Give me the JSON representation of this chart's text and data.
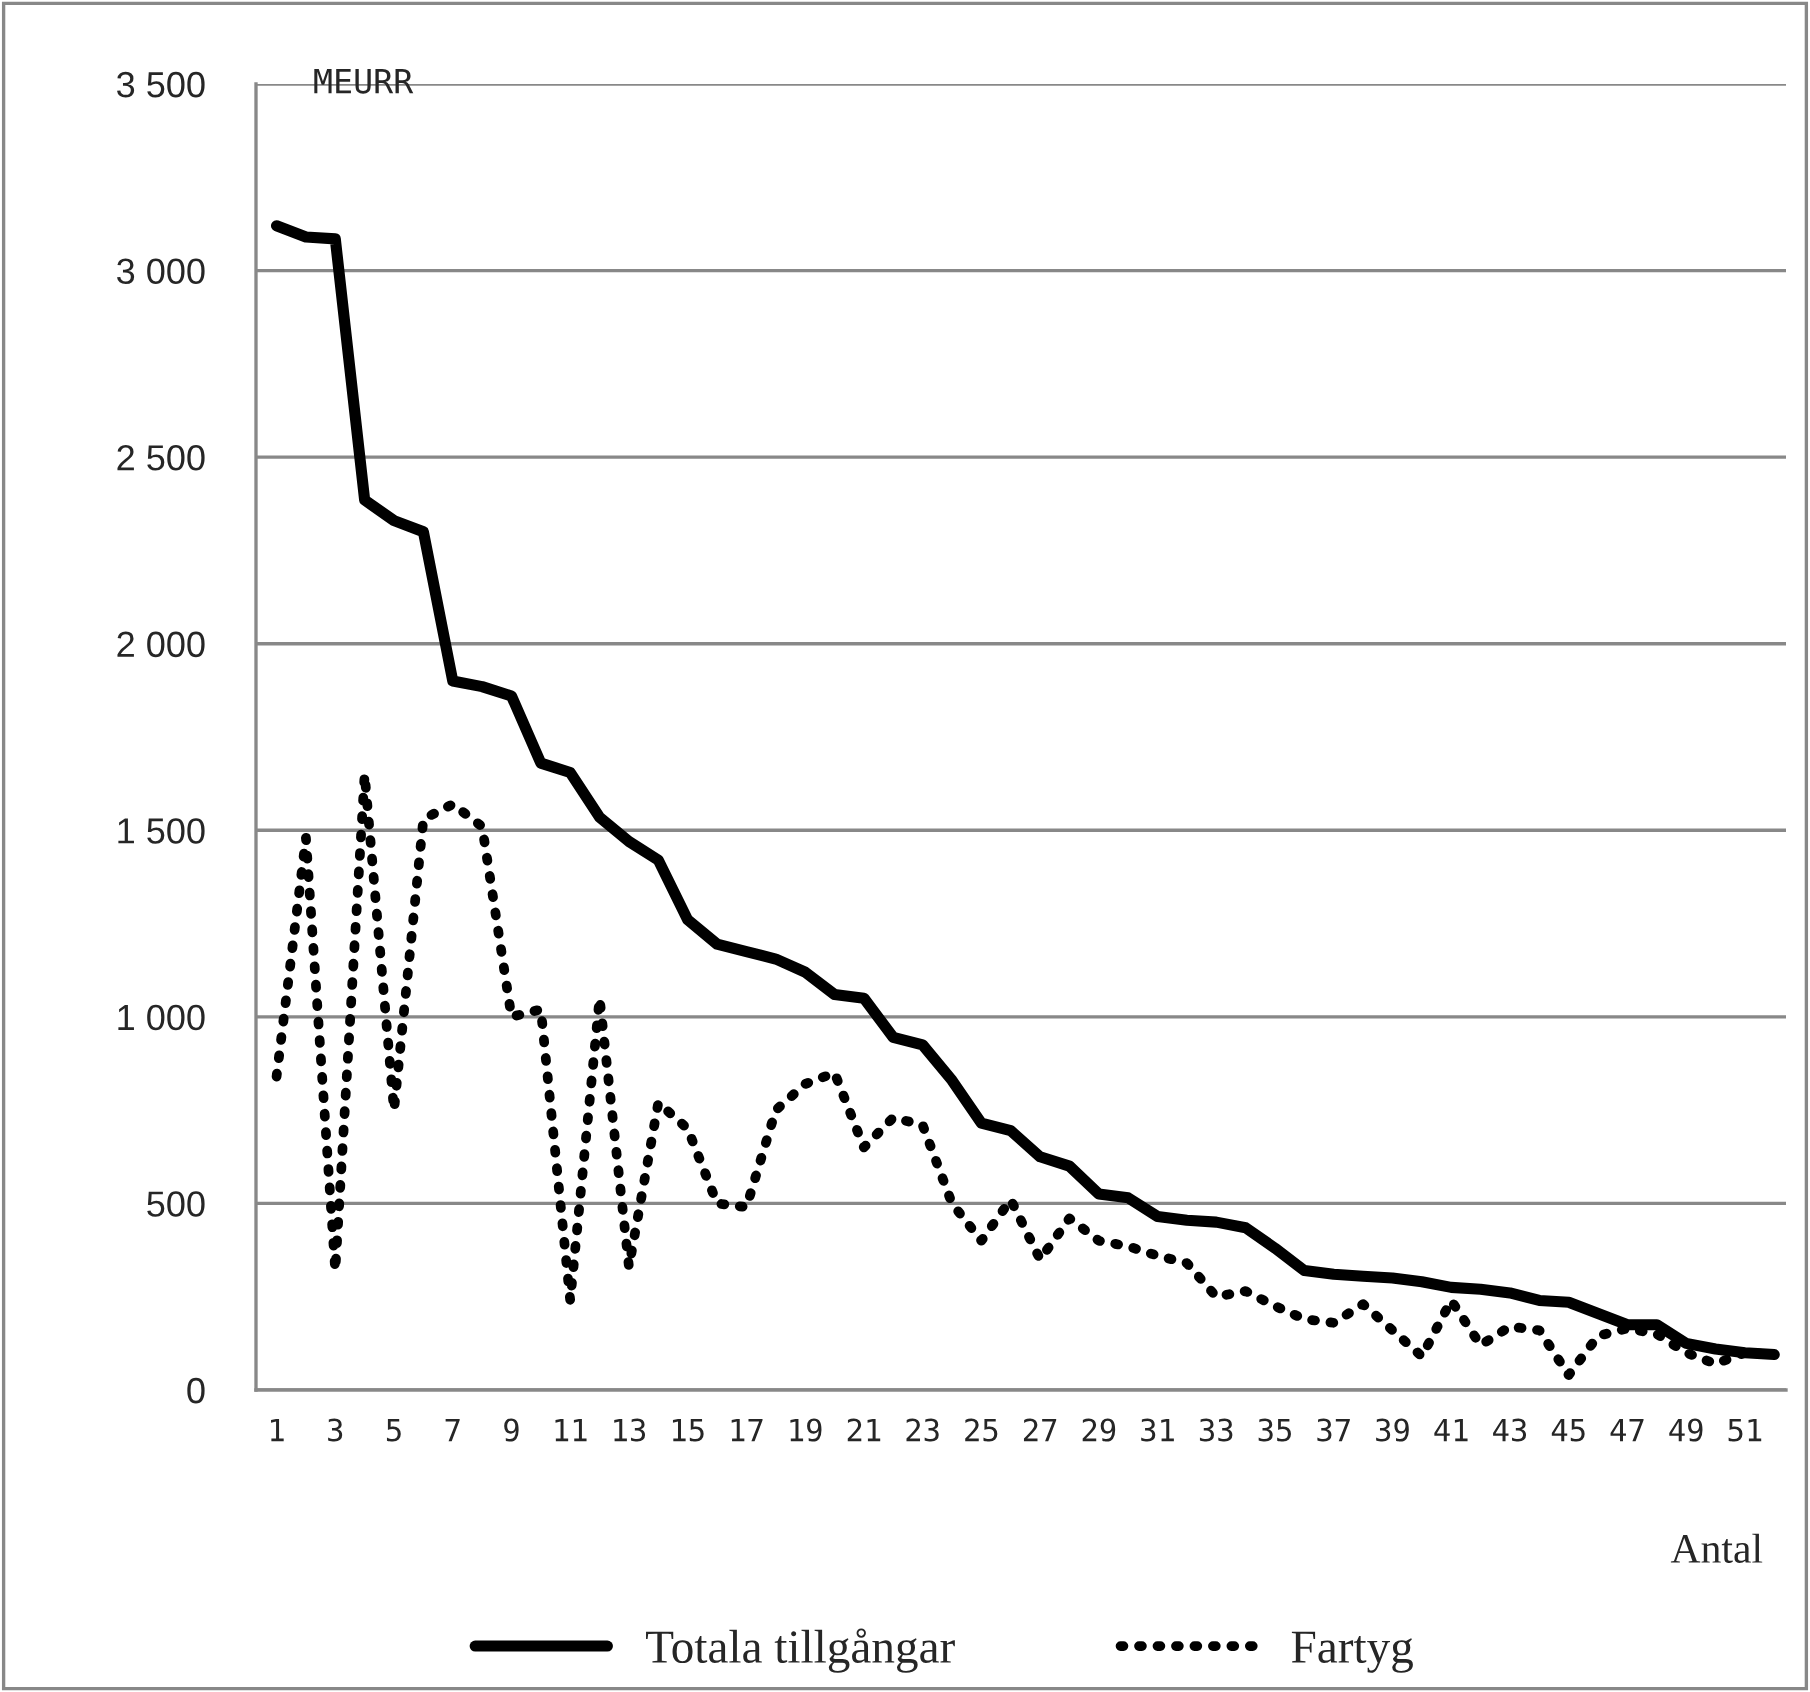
{
  "chart_data": {
    "type": "line",
    "ylabel": "MEURR",
    "xlabel": "Antal",
    "categories": [
      "1",
      null,
      "3",
      null,
      "5",
      null,
      "7",
      null,
      "9",
      null,
      "11",
      null,
      "13",
      null,
      "15",
      null,
      "17",
      null,
      "19",
      null,
      "21",
      null,
      "23",
      null,
      "25",
      null,
      "27",
      null,
      "29",
      null,
      "31",
      null,
      "33",
      null,
      "35",
      null,
      "37",
      null,
      "39",
      null,
      "41",
      null,
      "43",
      null,
      "45",
      null,
      "47",
      null,
      "49",
      null,
      "51",
      null
    ],
    "series": [
      {
        "name": "Totala tillgångar",
        "color": "#000000",
        "line_style": "solid",
        "values": [
          3120,
          3090,
          3085,
          2385,
          2330,
          2300,
          1900,
          1885,
          1860,
          1680,
          1655,
          1535,
          1470,
          1420,
          1260,
          1195,
          1175,
          1155,
          1120,
          1060,
          1050,
          945,
          925,
          830,
          715,
          695,
          625,
          600,
          525,
          515,
          465,
          455,
          450,
          435,
          380,
          320,
          310,
          305,
          300,
          290,
          275,
          270,
          260,
          240,
          235,
          205,
          175,
          175,
          125,
          110,
          100,
          95
        ]
      },
      {
        "name": "Fartyg",
        "color": "#000000",
        "line_style": "dotted",
        "values": [
          840,
          1480,
          320,
          1650,
          750,
          1530,
          1570,
          1510,
          1000,
          1020,
          240,
          1050,
          330,
          770,
          700,
          500,
          490,
          750,
          820,
          850,
          650,
          730,
          710,
          500,
          400,
          510,
          350,
          460,
          400,
          385,
          360,
          340,
          250,
          265,
          225,
          190,
          180,
          230,
          160,
          90,
          240,
          120,
          170,
          160,
          40,
          145,
          165,
          150,
          100,
          70,
          100,
          95
        ]
      }
    ],
    "ylim": [
      0,
      3500
    ],
    "yticks": [
      {
        "value": 0,
        "label": "0"
      },
      {
        "value": 500,
        "label": "500"
      },
      {
        "value": 1000,
        "label": "1 000"
      },
      {
        "value": 1500,
        "label": "1 500"
      },
      {
        "value": 2000,
        "label": "2 000"
      },
      {
        "value": 2500,
        "label": "2 500"
      },
      {
        "value": 3000,
        "label": "3 000"
      },
      {
        "value": 3500,
        "label": "3 500"
      }
    ],
    "grid": "y",
    "legend": "bottom",
    "marker": "none"
  }
}
